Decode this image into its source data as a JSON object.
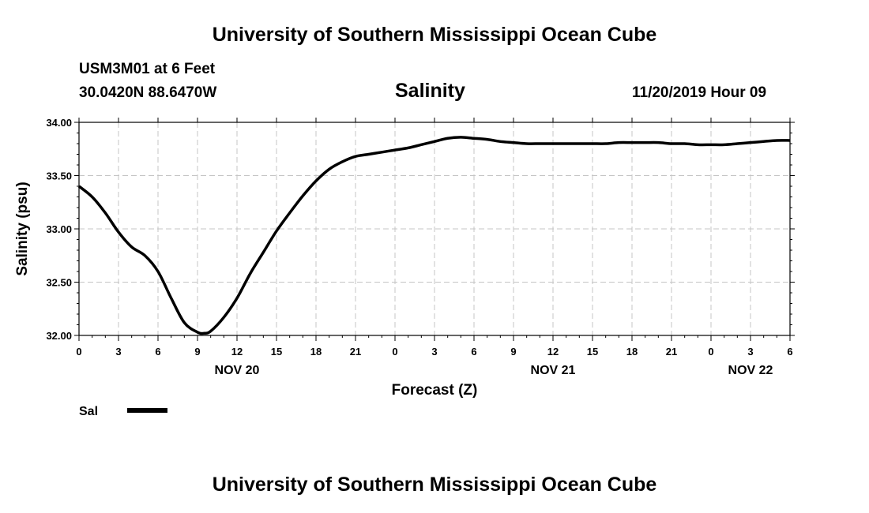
{
  "header": {
    "top_title": "University of Southern Mississippi Ocean Cube",
    "station": "USM3M01 at 6 Feet",
    "coords": "30.0420N 88.6470W",
    "chart_title": "Salinity",
    "datetime": "11/20/2019 Hour 09"
  },
  "footer": {
    "bottom_title": "University of Southern Mississippi Ocean Cube"
  },
  "chart_data": {
    "type": "line",
    "title": "Salinity",
    "xlabel": "Forecast (Z)",
    "ylabel": "Salinity (psu)",
    "ylim": [
      32.0,
      34.0
    ],
    "xlim": [
      0,
      54
    ],
    "y_ticks": [
      "32.00",
      "32.50",
      "33.00",
      "33.50",
      "34.00"
    ],
    "y_tick_values": [
      32.0,
      32.5,
      33.0,
      33.5,
      34.0
    ],
    "x_tick_labels": [
      "0",
      "3",
      "6",
      "9",
      "12",
      "15",
      "18",
      "21",
      "0",
      "3",
      "6",
      "9",
      "12",
      "15",
      "18",
      "21",
      "0",
      "3",
      "6"
    ],
    "date_labels": [
      {
        "label": "NOV 20",
        "hour": 12
      },
      {
        "label": "NOV 21",
        "hour": 36
      },
      {
        "label": "NOV 22",
        "hour": 51
      }
    ],
    "grid": true,
    "legend": {
      "position": "bottom-left",
      "entries": [
        "Sal"
      ],
      "color": "#000000"
    },
    "series": [
      {
        "name": "Sal",
        "x": [
          0,
          1,
          2,
          3,
          4,
          5,
          6,
          7,
          8,
          9,
          9.5,
          10,
          11,
          12,
          13,
          14,
          15,
          16,
          17,
          18,
          19,
          20,
          21,
          22,
          23,
          24,
          25,
          26,
          27,
          28,
          29,
          30,
          31,
          32,
          33,
          34,
          35,
          36,
          37,
          38,
          39,
          40,
          41,
          42,
          43,
          44,
          45,
          46,
          47,
          48,
          49,
          50,
          51,
          52,
          53,
          54
        ],
        "y": [
          33.4,
          33.3,
          33.15,
          32.97,
          32.83,
          32.75,
          32.6,
          32.35,
          32.12,
          32.03,
          32.02,
          32.04,
          32.17,
          32.35,
          32.58,
          32.78,
          32.98,
          33.15,
          33.31,
          33.45,
          33.56,
          33.63,
          33.68,
          33.7,
          33.72,
          33.74,
          33.76,
          33.79,
          33.82,
          33.85,
          33.86,
          33.85,
          33.84,
          33.82,
          33.81,
          33.8,
          33.8,
          33.8,
          33.8,
          33.8,
          33.8,
          33.8,
          33.81,
          33.81,
          33.81,
          33.81,
          33.8,
          33.8,
          33.79,
          33.79,
          33.79,
          33.8,
          33.81,
          33.82,
          33.83,
          33.83
        ]
      }
    ]
  }
}
